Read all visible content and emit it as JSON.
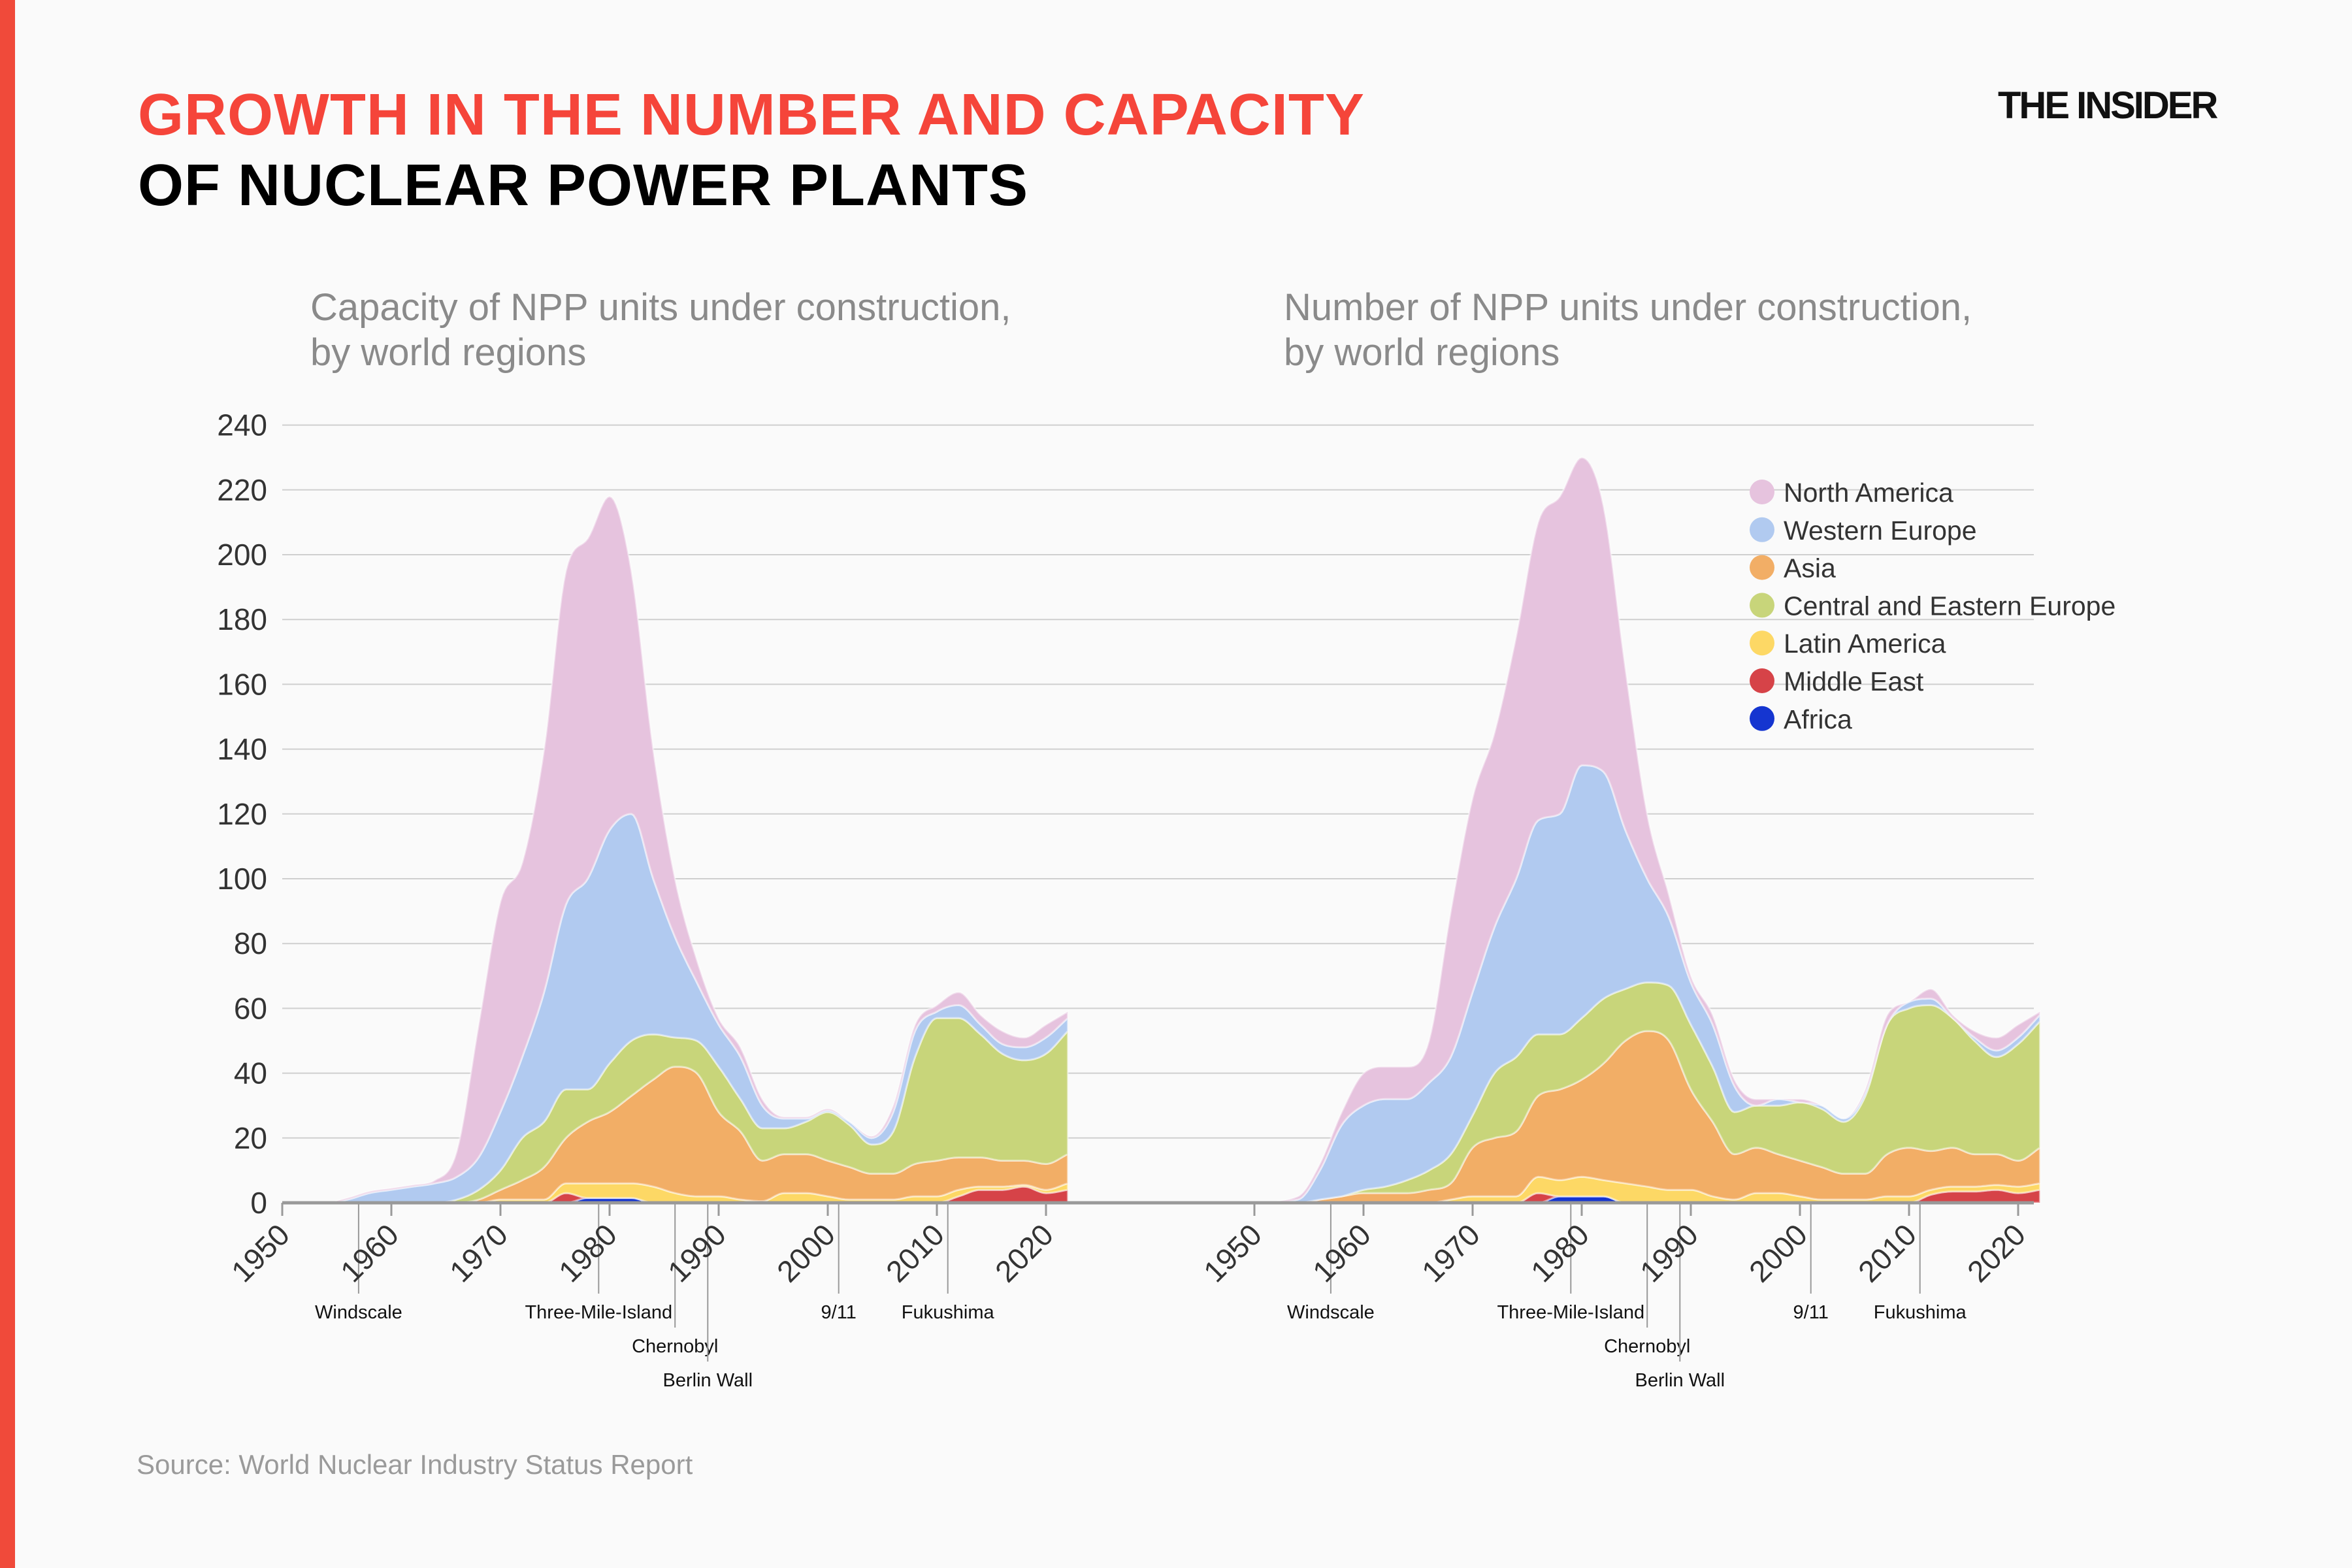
{
  "header": {
    "title_line1": "GROWTH IN THE NUMBER AND CAPACITY",
    "title_line2": "OF NUCLEAR POWER PLANTS",
    "logo": "THE INSIDER"
  },
  "source": "Source: World Nuclear Industry Status Report",
  "events": [
    {
      "year": 1957,
      "label": "Windscale"
    },
    {
      "year": 1979,
      "label": "Three-Mile-Island"
    },
    {
      "year": 1986,
      "label": "Chernobyl"
    },
    {
      "year": 1989,
      "label": "Berlin Wall"
    },
    {
      "year": 2001,
      "label": "9/11"
    },
    {
      "year": 2011,
      "label": "Fukushima"
    }
  ],
  "colors": {
    "North America": "#e6c3de",
    "Western Europe": "#b1caf0",
    "Asia": "#f2ae66",
    "Central and Eastern Europe": "#c8d57a",
    "Latin America": "#fdd865",
    "Middle East": "#d64348",
    "Africa": "#1535d0",
    "accent": "#f5453a"
  },
  "legend": [
    "North America",
    "Western Europe",
    "Asia",
    "Central and Eastern Europe",
    "Latin America",
    "Middle East",
    "Africa"
  ],
  "chart_data": [
    {
      "type": "area",
      "stacked": true,
      "title_line1": "Capacity of NPP units under construction,",
      "title_line2": "by world regions",
      "ylim": [
        0,
        240
      ],
      "yticks": [
        0,
        20,
        40,
        60,
        80,
        100,
        120,
        140,
        160,
        180,
        200,
        220,
        240
      ],
      "xticks": [
        1950,
        1960,
        1970,
        1980,
        1990,
        2000,
        2010,
        2020
      ],
      "grid": true,
      "x": [
        1950,
        1954,
        1956,
        1958,
        1960,
        1962,
        1964,
        1966,
        1968,
        1970,
        1972,
        1974,
        1976,
        1978,
        1980,
        1982,
        1984,
        1986,
        1988,
        1990,
        1992,
        1994,
        1996,
        1998,
        2000,
        2002,
        2004,
        2006,
        2008,
        2010,
        2012,
        2014,
        2016,
        2018,
        2020,
        2022
      ],
      "series": [
        {
          "name": "Africa",
          "values": [
            0,
            0,
            0,
            0,
            0,
            0,
            0,
            0,
            0,
            0,
            0,
            0,
            0,
            1.5,
            1.5,
            1.5,
            0,
            0,
            0,
            0,
            0,
            0,
            0,
            0,
            0,
            0,
            0,
            0,
            0,
            0,
            0,
            0,
            0,
            0,
            0,
            0
          ]
        },
        {
          "name": "Middle East",
          "values": [
            0,
            0,
            0,
            0,
            0,
            0,
            0,
            0,
            0,
            0,
            0,
            0,
            3,
            0,
            0,
            0,
            0,
            0,
            0,
            0,
            0,
            0,
            0,
            0,
            0,
            0,
            0,
            0,
            0,
            0,
            2,
            4,
            4,
            5,
            3,
            4
          ]
        },
        {
          "name": "Latin America",
          "values": [
            0,
            0,
            0,
            0,
            0,
            0,
            0,
            0,
            0,
            1,
            1,
            1,
            3,
            4.5,
            4.5,
            4.5,
            5,
            3,
            2,
            2,
            1,
            0.5,
            3,
            3,
            2,
            1,
            1,
            1,
            2,
            2,
            2,
            1,
            1,
            0.5,
            1,
            2
          ]
        },
        {
          "name": "Asia",
          "values": [
            0,
            0,
            0,
            0,
            0,
            0,
            0,
            0,
            1,
            3,
            6,
            10,
            14,
            19,
            22,
            27,
            33,
            39,
            38,
            26,
            21,
            12.5,
            12,
            12,
            11,
            10,
            8,
            8,
            10,
            11,
            10,
            9,
            8,
            7.5,
            8,
            9
          ]
        },
        {
          "name": "Central and Eastern Europe",
          "values": [
            0,
            0,
            0,
            0,
            0,
            0,
            0,
            1,
            3,
            6,
            13,
            14,
            15,
            10,
            15,
            17,
            14,
            9,
            10,
            14,
            10,
            10,
            8,
            10,
            15,
            13,
            9,
            13,
            33,
            44,
            43,
            38,
            33,
            31,
            34,
            38
          ]
        },
        {
          "name": "Western Europe",
          "values": [
            0,
            0,
            1,
            3,
            4,
            5,
            6,
            7,
            10,
            18,
            25,
            40,
            57,
            65,
            72,
            70,
            48,
            31,
            18,
            13,
            13,
            7,
            3,
            1,
            0.5,
            1,
            2,
            6,
            8,
            2,
            4,
            3,
            3,
            4,
            5,
            4
          ]
        },
        {
          "name": "North America",
          "values": [
            0,
            0,
            0.5,
            0.5,
            0.5,
            0.5,
            1,
            8,
            41,
            65,
            60,
            75,
            103,
            105,
            103,
            75,
            40,
            18,
            7,
            2,
            3,
            2,
            0.5,
            0.5,
            0.5,
            0,
            0.5,
            2,
            2,
            2,
            4,
            3,
            4,
            3,
            4,
            2
          ]
        }
      ]
    },
    {
      "type": "area",
      "stacked": true,
      "title_line1": "Number of NPP units under construction,",
      "title_line2": "by world regions",
      "ylim": [
        0,
        240
      ],
      "xticks": [
        1950,
        1960,
        1970,
        1980,
        1990,
        2000,
        2010,
        2020
      ],
      "grid": true,
      "legend_position": "top-right",
      "x": [
        1950,
        1954,
        1956,
        1958,
        1960,
        1962,
        1964,
        1966,
        1968,
        1970,
        1972,
        1974,
        1976,
        1978,
        1980,
        1982,
        1984,
        1986,
        1988,
        1990,
        1992,
        1994,
        1996,
        1998,
        2000,
        2002,
        2004,
        2006,
        2008,
        2010,
        2012,
        2014,
        2016,
        2018,
        2020,
        2022
      ],
      "series": [
        {
          "name": "Africa",
          "values": [
            0,
            0,
            0,
            0,
            0,
            0,
            0,
            0,
            0,
            0,
            0,
            0,
            0,
            2,
            2,
            2,
            0,
            0,
            0,
            0,
            0,
            0,
            0,
            0,
            0,
            0,
            0,
            0,
            0,
            0,
            0,
            0,
            0,
            0,
            0,
            0
          ]
        },
        {
          "name": "Middle East",
          "values": [
            0,
            0,
            0,
            0,
            0,
            0,
            0,
            0,
            0,
            0,
            0,
            0,
            3,
            0,
            0,
            0,
            0,
            0,
            0,
            0,
            0,
            0,
            0,
            0,
            0,
            0,
            0,
            0,
            0,
            0,
            2.5,
            3.5,
            3.5,
            4,
            3,
            4
          ]
        },
        {
          "name": "Latin America",
          "values": [
            0,
            0,
            0,
            0,
            0,
            0,
            0,
            0,
            1,
            2,
            2,
            2,
            5,
            5,
            6,
            5,
            6,
            5,
            4,
            4,
            2,
            1,
            3,
            3,
            2,
            1,
            1,
            1,
            2,
            2,
            1.5,
            1.5,
            1.5,
            1.5,
            2,
            2
          ]
        },
        {
          "name": "Asia",
          "values": [
            0,
            0,
            1,
            2,
            3,
            3,
            3,
            4,
            5,
            15,
            18,
            20,
            25,
            28,
            30,
            36,
            44,
            48,
            46,
            31,
            23,
            14,
            14,
            12,
            11,
            10,
            8,
            8,
            13,
            15,
            12,
            12,
            10,
            9.5,
            8,
            11
          ]
        },
        {
          "name": "Central and Eastern Europe",
          "values": [
            0,
            0,
            0,
            0,
            1,
            2,
            4,
            6,
            9,
            10,
            20,
            23,
            19,
            17,
            19,
            20,
            16,
            15,
            17,
            20,
            17,
            13,
            13,
            15,
            18,
            18,
            16,
            24,
            40,
            43,
            45,
            40,
            35,
            30,
            36,
            39
          ]
        },
        {
          "name": "Western Europe",
          "values": [
            0,
            1,
            9,
            22,
            26,
            27,
            25,
            27,
            30,
            38,
            45,
            55,
            66,
            68,
            78,
            70,
            49,
            32,
            21,
            13,
            13,
            8,
            0,
            2,
            0,
            1,
            1,
            1,
            0,
            2,
            2,
            0,
            1,
            2,
            2,
            2
          ]
        },
        {
          "name": "North America",
          "values": [
            0,
            1,
            2,
            4,
            10,
            10,
            10,
            13,
            45,
            60,
            60,
            75,
            92,
            98,
            95,
            82,
            50,
            20,
            7,
            2,
            3,
            2,
            2,
            0,
            1,
            0,
            0,
            1,
            3,
            0,
            3,
            1,
            2,
            4,
            4,
            1
          ]
        }
      ]
    }
  ]
}
